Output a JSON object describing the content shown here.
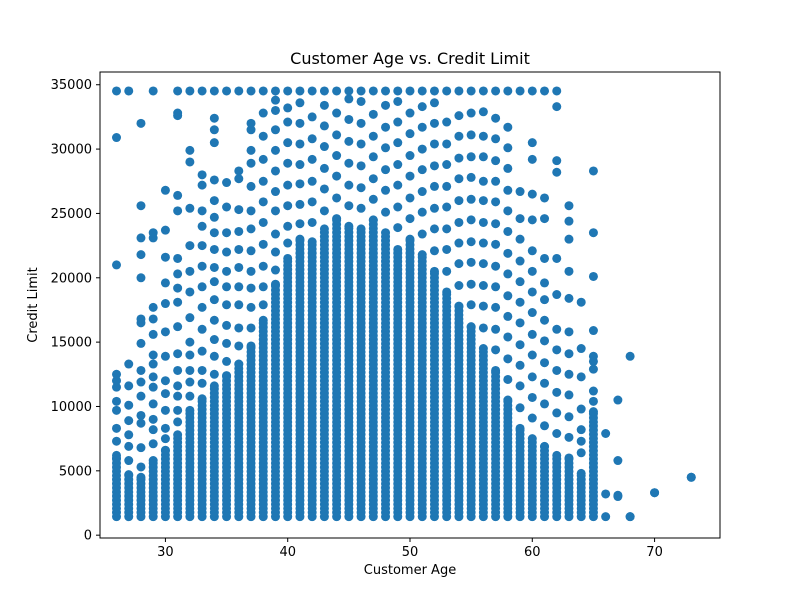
{
  "chart_data": {
    "type": "scatter",
    "title": "Customer Age vs. Credit Limit",
    "xlabel": "Customer Age",
    "ylabel": "Credit Limit",
    "xlim": [
      24.65,
      75.35
    ],
    "ylim": [
      -220,
      35990
    ],
    "xticks": [
      30,
      40,
      50,
      60,
      70
    ],
    "yticks": [
      0,
      5000,
      10000,
      15000,
      20000,
      25000,
      30000,
      35000
    ],
    "grid": false,
    "legend": "none",
    "marker_color": "#1f77b4",
    "columns": [
      {
        "age": 26,
        "min": 1438,
        "dense_top": 6000,
        "sparse": [
          6200,
          7300,
          8300,
          9700,
          10400,
          11500,
          12000,
          12500,
          21000,
          30900,
          34516
        ]
      },
      {
        "age": 27,
        "min": 1438,
        "dense_top": 4700,
        "sparse": [
          5800,
          6900,
          7800,
          8900,
          10100,
          11600,
          13300,
          34516
        ]
      },
      {
        "age": 28,
        "min": 1438,
        "dense_top": 4500,
        "sparse": [
          5300,
          6800,
          8700,
          9300,
          10800,
          11900,
          12800,
          14900,
          16500,
          16800,
          20000,
          21800,
          23100,
          25600,
          32000
        ]
      },
      {
        "age": 29,
        "min": 1438,
        "dense_top": 5800,
        "sparse": [
          7100,
          8200,
          9000,
          10200,
          11500,
          12300,
          13300,
          14000,
          15600,
          16800,
          17700,
          23100,
          23500,
          34516
        ]
      },
      {
        "age": 30,
        "min": 1438,
        "dense_top": 6600,
        "sparse": [
          7500,
          8300,
          9700,
          11000,
          12000,
          13900,
          15800,
          18000,
          19600,
          21600,
          23700,
          26800
        ]
      },
      {
        "age": 31,
        "min": 1438,
        "dense_top": 7800,
        "sparse": [
          8800,
          9700,
          10800,
          11600,
          12800,
          14100,
          16200,
          18100,
          19200,
          20300,
          21500,
          25200,
          26400,
          32600,
          32800,
          34516
        ]
      },
      {
        "age": 32,
        "min": 1438,
        "dense_top": 9700,
        "sparse": [
          10800,
          11900,
          12800,
          14000,
          15000,
          16900,
          18900,
          20500,
          22500,
          25400,
          29000,
          29900,
          34516
        ]
      },
      {
        "age": 33,
        "min": 1438,
        "dense_top": 10600,
        "sparse": [
          11800,
          12800,
          14300,
          16000,
          17700,
          19300,
          20900,
          22500,
          24000,
          25200,
          27200,
          28000,
          34516
        ]
      },
      {
        "age": 34,
        "min": 1438,
        "dense_top": 11600,
        "sparse": [
          12500,
          13900,
          15200,
          16700,
          18300,
          19700,
          20800,
          22200,
          23500,
          24700,
          26000,
          27600,
          30500,
          31500,
          32400,
          34516
        ]
      },
      {
        "age": 35,
        "min": 1438,
        "dense_top": 12400,
        "sparse": [
          13500,
          14900,
          16300,
          17900,
          19300,
          20500,
          22000,
          23500,
          25500,
          27400,
          34516
        ]
      },
      {
        "age": 36,
        "min": 1438,
        "dense_top": 13300,
        "sparse": [
          14700,
          16100,
          17900,
          19300,
          20800,
          22200,
          23600,
          25300,
          27700,
          28300,
          34516
        ]
      },
      {
        "age": 37,
        "min": 1438,
        "dense_top": 14700,
        "sparse": [
          16100,
          17700,
          19200,
          20500,
          22100,
          23800,
          25200,
          27100,
          28900,
          29900,
          31500,
          32000,
          34516
        ]
      },
      {
        "age": 38,
        "min": 1438,
        "dense_top": 16700,
        "sparse": [
          17900,
          19300,
          20900,
          22600,
          24300,
          25900,
          27500,
          29200,
          31000,
          32800,
          34516
        ]
      },
      {
        "age": 39,
        "min": 1438,
        "dense_top": 19500,
        "sparse": [
          20600,
          22000,
          23400,
          25200,
          26700,
          28300,
          29900,
          31500,
          33000,
          33800,
          34516
        ]
      },
      {
        "age": 40,
        "min": 1438,
        "dense_top": 21500,
        "sparse": [
          22700,
          24000,
          25600,
          27200,
          28900,
          30500,
          32100,
          33200,
          34516
        ]
      },
      {
        "age": 41,
        "min": 1438,
        "dense_top": 23000,
        "sparse": [
          24200,
          25700,
          27300,
          28800,
          30400,
          32000,
          33600,
          34516
        ]
      },
      {
        "age": 42,
        "min": 1438,
        "dense_top": 22800,
        "sparse": [
          24300,
          25900,
          27500,
          29200,
          30800,
          32500,
          34516
        ]
      },
      {
        "age": 43,
        "min": 1438,
        "dense_top": 23800,
        "sparse": [
          25200,
          26900,
          28500,
          30200,
          31800,
          33400,
          34516
        ]
      },
      {
        "age": 44,
        "min": 1438,
        "dense_top": 24600,
        "sparse": [
          26200,
          27900,
          29500,
          31100,
          32800,
          34516
        ]
      },
      {
        "age": 45,
        "min": 1438,
        "dense_top": 24000,
        "sparse": [
          25600,
          27200,
          28900,
          30600,
          32300,
          33900,
          34516
        ]
      },
      {
        "age": 46,
        "min": 1438,
        "dense_top": 23800,
        "sparse": [
          25400,
          27000,
          28700,
          30400,
          32000,
          33700,
          34516
        ]
      },
      {
        "age": 47,
        "min": 1438,
        "dense_top": 24500,
        "sparse": [
          26100,
          27700,
          29400,
          31000,
          32700,
          34516
        ]
      },
      {
        "age": 48,
        "min": 1438,
        "dense_top": 23500,
        "sparse": [
          25100,
          26800,
          28400,
          30100,
          31700,
          33400,
          34516
        ]
      },
      {
        "age": 49,
        "min": 1438,
        "dense_top": 22200,
        "sparse": [
          23900,
          25500,
          27200,
          28800,
          30500,
          32100,
          33700,
          34516
        ]
      },
      {
        "age": 50,
        "min": 1438,
        "dense_top": 23000,
        "sparse": [
          24600,
          26200,
          27900,
          29500,
          31200,
          32800,
          34516
        ]
      },
      {
        "age": 51,
        "min": 1438,
        "dense_top": 21800,
        "sparse": [
          23400,
          25100,
          26700,
          28400,
          30000,
          31700,
          33300,
          34516
        ]
      },
      {
        "age": 52,
        "min": 1438,
        "dense_top": 20500,
        "sparse": [
          22100,
          23800,
          25400,
          27100,
          28700,
          30400,
          32000,
          33600,
          34516
        ]
      },
      {
        "age": 53,
        "min": 1438,
        "dense_top": 18900,
        "sparse": [
          20500,
          22200,
          23800,
          25500,
          27100,
          28800,
          30400,
          32100,
          34516
        ]
      },
      {
        "age": 54,
        "min": 1438,
        "dense_top": 17800,
        "sparse": [
          19400,
          21100,
          22700,
          24300,
          26000,
          27700,
          29300,
          31000,
          32600,
          34516
        ]
      },
      {
        "age": 55,
        "min": 1438,
        "dense_top": 16200,
        "sparse": [
          17900,
          19500,
          21200,
          22800,
          24500,
          26100,
          27800,
          29400,
          31100,
          32800,
          34516
        ]
      },
      {
        "age": 56,
        "min": 1438,
        "dense_top": 14500,
        "sparse": [
          16100,
          17800,
          19400,
          21100,
          22700,
          24300,
          26000,
          27500,
          29400,
          31000,
          32900,
          34516
        ]
      },
      {
        "age": 57,
        "min": 1438,
        "dense_top": 12800,
        "sparse": [
          14400,
          16000,
          17700,
          19300,
          20900,
          22600,
          24200,
          25900,
          27500,
          29100,
          30800,
          32400,
          34516
        ]
      },
      {
        "age": 58,
        "min": 1438,
        "dense_top": 10500,
        "sparse": [
          12100,
          13700,
          15400,
          17000,
          18600,
          20300,
          21900,
          23600,
          25200,
          26800,
          28500,
          30100,
          31700,
          34516
        ]
      },
      {
        "age": 59,
        "min": 1438,
        "dense_top": 8300,
        "sparse": [
          9900,
          11600,
          13200,
          14800,
          16500,
          18100,
          19700,
          21300,
          23000,
          24600,
          26700,
          34516
        ]
      },
      {
        "age": 60,
        "min": 1438,
        "dense_top": 7500,
        "sparse": [
          9100,
          10700,
          12300,
          14000,
          15600,
          17300,
          18900,
          20500,
          22100,
          24500,
          26500,
          29200,
          30500,
          34516
        ]
      },
      {
        "age": 61,
        "min": 1438,
        "dense_top": 6900,
        "sparse": [
          8500,
          10200,
          11800,
          13400,
          15100,
          16700,
          18300,
          19600,
          21500,
          24600,
          26200,
          34516
        ]
      },
      {
        "age": 62,
        "min": 1438,
        "dense_top": 6200,
        "sparse": [
          7900,
          9500,
          11100,
          12800,
          14400,
          16000,
          18700,
          21500,
          28200,
          29100,
          33300,
          34516
        ]
      },
      {
        "age": 63,
        "min": 1438,
        "dense_top": 6000,
        "sparse": [
          7600,
          9200,
          10900,
          12500,
          14100,
          15800,
          18400,
          20500,
          23000,
          24400,
          25600
        ]
      },
      {
        "age": 64,
        "min": 1438,
        "dense_top": 4800,
        "sparse": [
          6400,
          7300,
          8200,
          9800,
          12300,
          14500,
          18100
        ]
      },
      {
        "age": 65,
        "min": 1438,
        "dense_top": 9600,
        "sparse": [
          10400,
          11200,
          12900,
          13500,
          13900,
          15900,
          20100,
          23500,
          28300
        ]
      },
      {
        "age": 66,
        "min": 1438,
        "dense_top": 0,
        "sparse": [
          3200,
          7900
        ]
      },
      {
        "age": 67,
        "min": 3000,
        "dense_top": 0,
        "sparse": [
          3100,
          5800,
          10500
        ]
      },
      {
        "age": 68,
        "min": 1438,
        "dense_top": 0,
        "sparse": [
          1438,
          13900
        ]
      },
      {
        "age": 70,
        "min": 3300,
        "dense_top": 0,
        "sparse": [
          3300
        ]
      },
      {
        "age": 73,
        "min": 4500,
        "dense_top": 0,
        "sparse": [
          4500
        ]
      }
    ]
  }
}
